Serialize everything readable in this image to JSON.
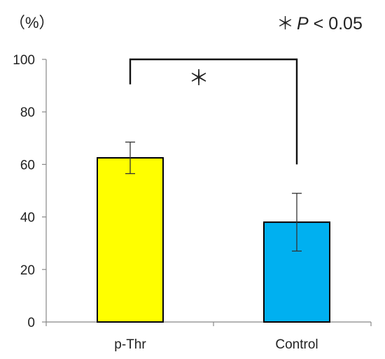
{
  "chart_data": {
    "type": "bar",
    "y_unit_label": "（%）",
    "significance_legend": {
      "star": "＊",
      "p_symbol": "P",
      "p_text": " < 0.05"
    },
    "categories": [
      "p-Thr",
      "Control"
    ],
    "values": [
      62.5,
      38
    ],
    "error": [
      6,
      11
    ],
    "colors": [
      "#ffff00",
      "#00b0f0"
    ],
    "ylim": [
      0,
      100
    ],
    "yticks": [
      "0",
      "20",
      "40",
      "60",
      "80",
      "100"
    ],
    "significance_bracket": {
      "between": [
        "p-Thr",
        "Control"
      ],
      "label": "＊"
    },
    "grid": false,
    "legend": "none"
  }
}
